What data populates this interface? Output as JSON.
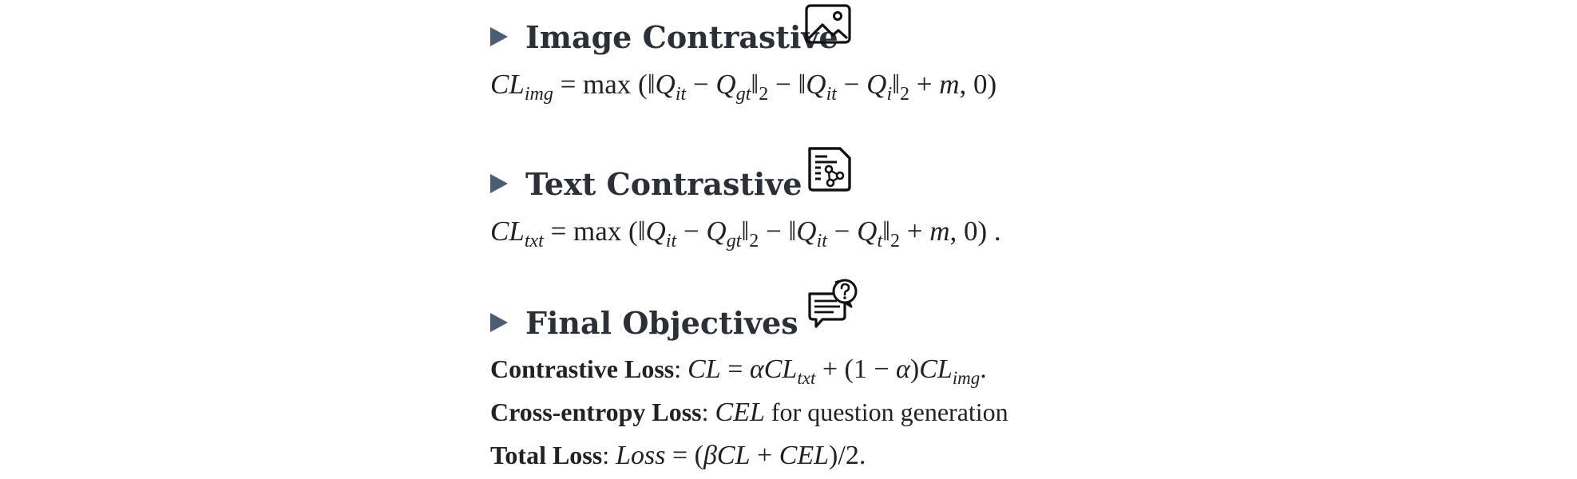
{
  "sections": [
    {
      "title": "Image Contrastive",
      "icon": "image-icon",
      "formula_text": "CL_img = max(||Q_it - Q_gt||_2 - ||Q_it - Q_i||_2 + m, 0)"
    },
    {
      "title": "Text Contrastive",
      "icon": "document-network-icon",
      "formula_text": "CL_txt = max(||Q_it - Q_gt||_2 - ||Q_it - Q_t||_2 + m, 0)."
    },
    {
      "title": "Final Objectives",
      "icon": "chat-question-icon"
    }
  ],
  "objectives": [
    {
      "label": "Contrastive Loss",
      "text": "CL = αCL_txt + (1 − α)CL_img."
    },
    {
      "label": "Cross-entropy Loss",
      "math": "CEL",
      "text": " for question generation"
    },
    {
      "label": "Total Loss",
      "text": "Loss = (βCL + CEL)/2."
    }
  ]
}
